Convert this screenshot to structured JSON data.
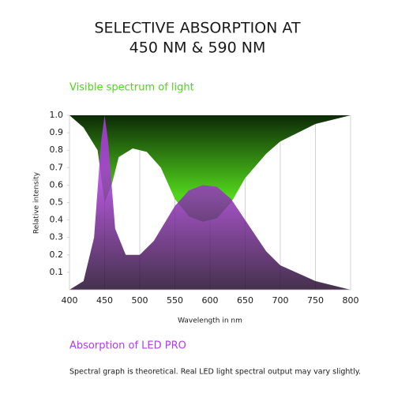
{
  "chart_data": {
    "type": "area",
    "title": [
      "SELECTIVE ABSORPTION AT",
      "450 NM & 590 NM"
    ],
    "xlabel": "Wavelength in nm",
    "ylabel": "Relative intensity",
    "note": "Spectral graph is theoretical. Real LED light spectral output may vary slightly.",
    "xlim": [
      400,
      800
    ],
    "xticks": [
      400,
      450,
      500,
      550,
      600,
      650,
      700,
      750,
      800
    ],
    "ylim": [
      0,
      1
    ],
    "yticks": [
      0.1,
      0.2,
      0.3,
      0.4,
      0.5,
      0.6,
      0.7,
      0.8,
      0.9,
      {
        "value": 1,
        "label": "1.0"
      }
    ],
    "grid": true,
    "series": [
      {
        "name": "Visible spectrum of light",
        "color": "#52d41c",
        "fill_from": "top",
        "x": [
          400,
          420,
          440,
          450,
          460,
          470,
          490,
          510,
          530,
          550,
          570,
          590,
          610,
          630,
          650,
          680,
          700,
          750,
          800
        ],
        "values": [
          1.0,
          0.93,
          0.8,
          0.5,
          0.6,
          0.76,
          0.81,
          0.79,
          0.7,
          0.52,
          0.42,
          0.39,
          0.41,
          0.5,
          0.64,
          0.78,
          0.85,
          0.95,
          1.0
        ]
      },
      {
        "name": "Absorption of LED PRO",
        "color": "#b43ae8",
        "fill_from": "bottom",
        "x": [
          400,
          420,
          435,
          445,
          450,
          455,
          465,
          480,
          500,
          520,
          550,
          570,
          590,
          610,
          630,
          650,
          680,
          700,
          750,
          800
        ],
        "values": [
          0.0,
          0.05,
          0.3,
          0.85,
          1.0,
          0.85,
          0.35,
          0.2,
          0.2,
          0.28,
          0.48,
          0.57,
          0.6,
          0.59,
          0.52,
          0.4,
          0.22,
          0.14,
          0.05,
          0.0
        ]
      }
    ]
  }
}
